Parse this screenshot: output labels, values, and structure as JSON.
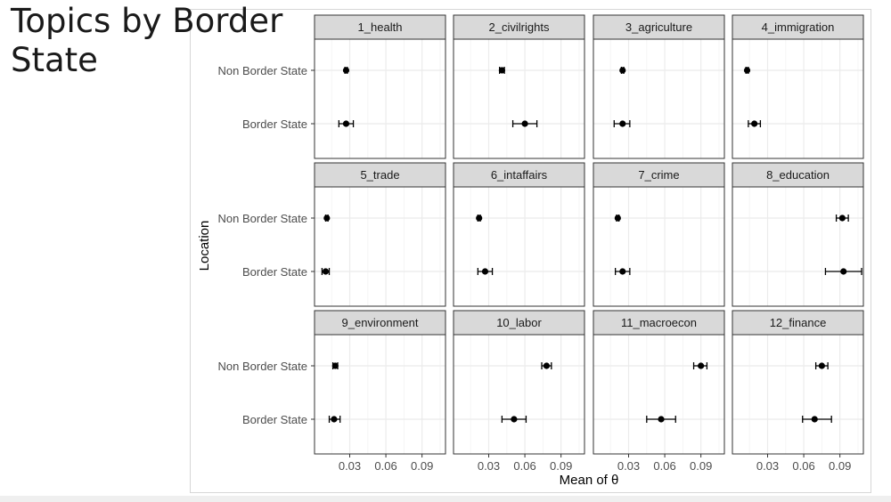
{
  "slide": {
    "title": "Topics by Border State"
  },
  "colors": {
    "strip_fill": "#d9d9d9",
    "panel_border": "#333333",
    "grid_major": "#ebebeb",
    "grid_minor": "#f5f5f5",
    "point": "#000000",
    "tick_text": "#4d4d4d",
    "axis_title": "#000000"
  },
  "chart_data": {
    "type": "scatter",
    "subtype": "facet point-range (mean with error bars)",
    "xlabel": "Mean of θ",
    "ylabel": "Location",
    "categories": [
      "Non Border State",
      "Border State"
    ],
    "x_ticks": [
      0.03,
      0.06,
      0.09
    ],
    "x_tick_labels": [
      "0.03",
      "0.06",
      "0.09"
    ],
    "xlim": [
      0.003,
      0.108
    ],
    "grid": true,
    "facets": [
      {
        "label": "1_health",
        "points": [
          {
            "category": "Non Border State",
            "mean": 0.027,
            "low": 0.026,
            "high": 0.028
          },
          {
            "category": "Border State",
            "mean": 0.027,
            "low": 0.021,
            "high": 0.033
          }
        ]
      },
      {
        "label": "2_civilrights",
        "points": [
          {
            "category": "Non Border State",
            "mean": 0.041,
            "low": 0.039,
            "high": 0.043
          },
          {
            "category": "Border State",
            "mean": 0.06,
            "low": 0.05,
            "high": 0.07
          }
        ]
      },
      {
        "label": "3_agriculture",
        "points": [
          {
            "category": "Non Border State",
            "mean": 0.025,
            "low": 0.024,
            "high": 0.026
          },
          {
            "category": "Border State",
            "mean": 0.025,
            "low": 0.018,
            "high": 0.031
          }
        ]
      },
      {
        "label": "4_immigration",
        "points": [
          {
            "category": "Non Border State",
            "mean": 0.013,
            "low": 0.012,
            "high": 0.014
          },
          {
            "category": "Border State",
            "mean": 0.019,
            "low": 0.014,
            "high": 0.024
          }
        ]
      },
      {
        "label": "5_trade",
        "points": [
          {
            "category": "Non Border State",
            "mean": 0.011,
            "low": 0.01,
            "high": 0.012
          },
          {
            "category": "Border State",
            "mean": 0.01,
            "low": 0.007,
            "high": 0.013
          }
        ]
      },
      {
        "label": "6_intaffairs",
        "points": [
          {
            "category": "Non Border State",
            "mean": 0.022,
            "low": 0.021,
            "high": 0.023
          },
          {
            "category": "Border State",
            "mean": 0.027,
            "low": 0.021,
            "high": 0.033
          }
        ]
      },
      {
        "label": "7_crime",
        "points": [
          {
            "category": "Non Border State",
            "mean": 0.021,
            "low": 0.02,
            "high": 0.022
          },
          {
            "category": "Border State",
            "mean": 0.025,
            "low": 0.019,
            "high": 0.031
          }
        ]
      },
      {
        "label": "8_education",
        "points": [
          {
            "category": "Non Border State",
            "mean": 0.092,
            "low": 0.087,
            "high": 0.097
          },
          {
            "category": "Border State",
            "mean": 0.093,
            "low": 0.078,
            "high": 0.108
          }
        ]
      },
      {
        "label": "9_environment",
        "points": [
          {
            "category": "Non Border State",
            "mean": 0.018,
            "low": 0.016,
            "high": 0.02
          },
          {
            "category": "Border State",
            "mean": 0.017,
            "low": 0.013,
            "high": 0.022
          }
        ]
      },
      {
        "label": "10_labor",
        "points": [
          {
            "category": "Non Border State",
            "mean": 0.078,
            "low": 0.074,
            "high": 0.082
          },
          {
            "category": "Border State",
            "mean": 0.051,
            "low": 0.041,
            "high": 0.061
          }
        ]
      },
      {
        "label": "11_macroecon",
        "points": [
          {
            "category": "Non Border State",
            "mean": 0.09,
            "low": 0.084,
            "high": 0.095
          },
          {
            "category": "Border State",
            "mean": 0.057,
            "low": 0.045,
            "high": 0.069
          }
        ]
      },
      {
        "label": "12_finance",
        "points": [
          {
            "category": "Non Border State",
            "mean": 0.075,
            "low": 0.07,
            "high": 0.08
          },
          {
            "category": "Border State",
            "mean": 0.069,
            "low": 0.059,
            "high": 0.083
          }
        ]
      }
    ]
  }
}
